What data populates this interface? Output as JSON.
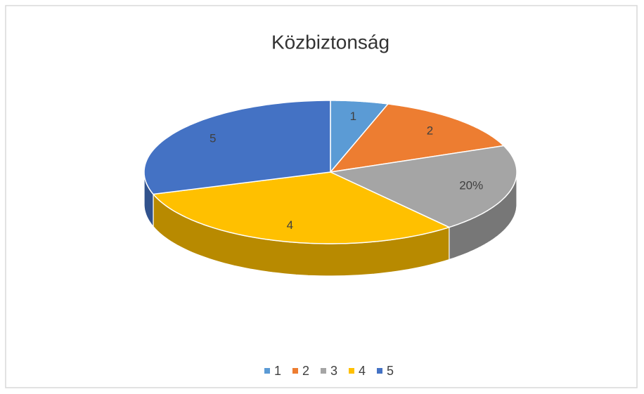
{
  "chart_data": {
    "type": "pie3d",
    "title": "Közbiztonság",
    "categories": [
      "1",
      "2",
      "3",
      "4",
      "5"
    ],
    "values": [
      5,
      14,
      20,
      31,
      30
    ],
    "value_labels": {
      "2": "20%"
    },
    "colors": [
      "#5b9bd5",
      "#ed7d31",
      "#a5a5a5",
      "#ffc000",
      "#4472c4"
    ],
    "legend": "bottom"
  }
}
